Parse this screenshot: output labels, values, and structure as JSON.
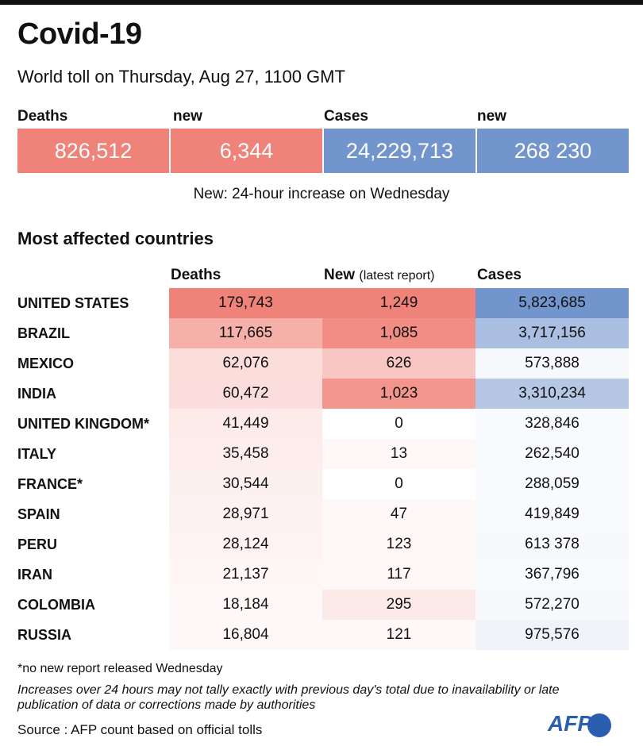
{
  "title": "Covid-19",
  "subtitle": "World toll on Thursday, Aug 27, 1100 GMT",
  "kpis": [
    {
      "label": "Deaths",
      "value": "826,512",
      "color": "#f08379"
    },
    {
      "label": "new",
      "value": "6,344",
      "color": "#f08379"
    },
    {
      "label": "Cases",
      "value": "24,229,713",
      "color": "#7395ce"
    },
    {
      "label": "new",
      "value": "268 230",
      "color": "#7395ce"
    }
  ],
  "note": "New: 24-hour increase on Wednesday",
  "section_title": "Most affected countries",
  "chart_data": {
    "type": "table",
    "title": "Most affected countries",
    "columns": [
      {
        "label": "Deaths",
        "sub": ""
      },
      {
        "label": "New",
        "sub": "(latest report)"
      },
      {
        "label": "Cases",
        "sub": ""
      }
    ],
    "rows": [
      {
        "country": "UNITED STATES",
        "deaths": "179,743",
        "new": "1,249",
        "cases": "5,823,685"
      },
      {
        "country": "BRAZIL",
        "deaths": "117,665",
        "new": "1,085",
        "cases": "3,717,156"
      },
      {
        "country": "MEXICO",
        "deaths": "62,076",
        "new": "626",
        "cases": "573,888"
      },
      {
        "country": "INDIA",
        "deaths": "60,472",
        "new": "1,023",
        "cases": "3,310,234"
      },
      {
        "country": "UNITED KINGDOM*",
        "deaths": "41,449",
        "new": "0",
        "cases": "328,846"
      },
      {
        "country": "ITALY",
        "deaths": "35,458",
        "new": "13",
        "cases": "262,540"
      },
      {
        "country": "FRANCE*",
        "deaths": "30,544",
        "new": "0",
        "cases": "288,059"
      },
      {
        "country": "SPAIN",
        "deaths": "28,971",
        "new": "47",
        "cases": "419,849"
      },
      {
        "country": "PERU",
        "deaths": "28,124",
        "new": "123",
        "cases": "613 378"
      },
      {
        "country": "IRAN",
        "deaths": "21,137",
        "new": "117",
        "cases": "367,796"
      },
      {
        "country": "COLOMBIA",
        "deaths": "18,184",
        "new": "295",
        "cases": "572,270"
      },
      {
        "country": "RUSSIA",
        "deaths": "16,804",
        "new": "121",
        "cases": "975,576"
      }
    ],
    "colors": {
      "deaths": "#f08379",
      "new": "#f08379",
      "cases": "#7395ce"
    }
  },
  "footnote": "*no new report released Wednesday",
  "disclaimer": "Increases over 24 hours may not tally exactly with previous day's total due to inavailability or late publication of data or corrections made by authorities",
  "source": "Source : AFP count based on official tolls",
  "logo": "AFP"
}
